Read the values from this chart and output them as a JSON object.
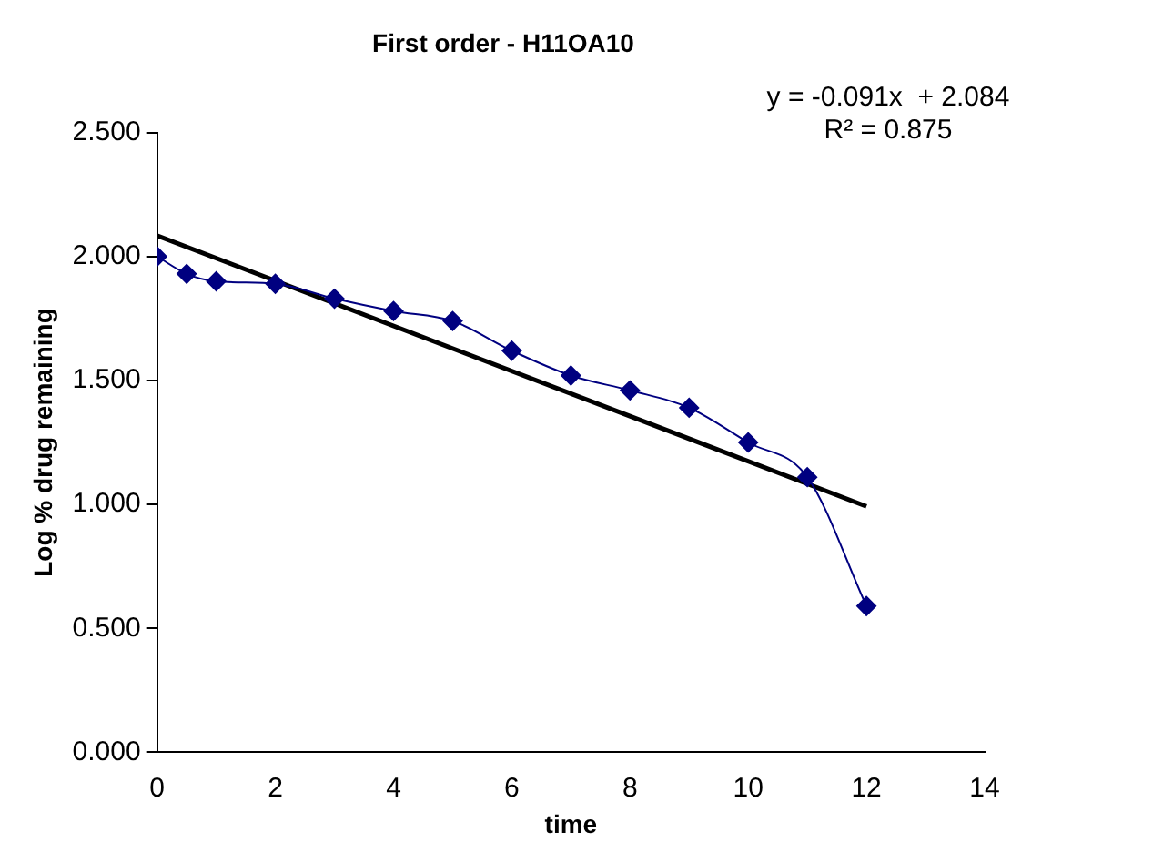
{
  "chart_data": {
    "type": "line",
    "title": "First order - H11OA10",
    "xlabel": "time",
    "ylabel": "Log % drug remaining",
    "annotations": [
      "y = -0.091x  + 2.084",
      "R² = 0.875"
    ],
    "series": [
      {
        "color": "#000080",
        "marker": "diamond",
        "x": [
          0,
          0.5,
          1,
          2,
          3,
          4,
          5,
          6,
          7,
          8,
          9,
          10,
          11,
          12
        ],
        "values": [
          2.0,
          1.93,
          1.9,
          1.89,
          1.83,
          1.78,
          1.74,
          1.62,
          1.52,
          1.46,
          1.39,
          1.25,
          1.11,
          0.59
        ]
      },
      {
        "color": "#000000",
        "marker": "none",
        "x": [
          0,
          12
        ],
        "values": [
          2.084,
          0.992
        ]
      }
    ],
    "xlim": [
      0,
      14
    ],
    "xticks": [
      0,
      2,
      4,
      6,
      8,
      10,
      12,
      14
    ],
    "ylim": [
      0,
      2.5
    ],
    "yticks": [
      {
        "value": 0,
        "label": "0.000"
      },
      {
        "value": 0.5,
        "label": "0.500"
      },
      {
        "value": 1,
        "label": "1.000"
      },
      {
        "value": 1.5,
        "label": "1.500"
      },
      {
        "value": 2,
        "label": "2.000"
      },
      {
        "value": 2.5,
        "label": "2.500"
      }
    ],
    "grid": false,
    "legend": false
  }
}
